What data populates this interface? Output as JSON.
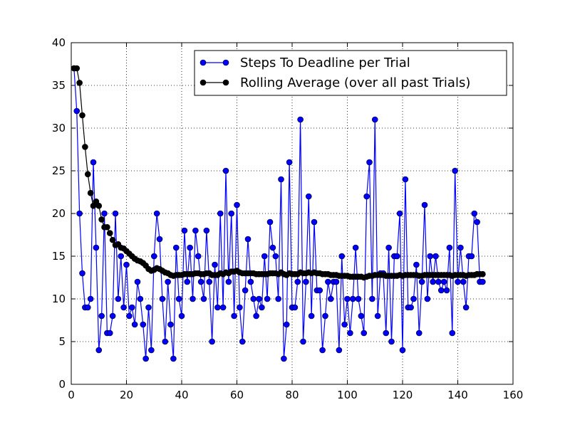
{
  "chart_data": {
    "type": "line",
    "title": "",
    "xlabel": "",
    "ylabel": "",
    "xlim": [
      0,
      160
    ],
    "ylim": [
      0,
      40
    ],
    "x_ticks": [
      0,
      20,
      40,
      60,
      80,
      100,
      120,
      140,
      160
    ],
    "y_ticks": [
      0,
      5,
      10,
      15,
      20,
      25,
      30,
      35,
      40
    ],
    "grid": true,
    "legend_position": "top-right",
    "series": [
      {
        "name": "Steps To Deadline per Trial",
        "color": "#0000ff",
        "marker": "circle",
        "x": [
          1,
          2,
          3,
          4,
          5,
          6,
          7,
          8,
          9,
          10,
          11,
          12,
          13,
          14,
          15,
          16,
          17,
          18,
          19,
          20,
          21,
          22,
          23,
          24,
          25,
          26,
          27,
          28,
          29,
          30,
          31,
          32,
          33,
          34,
          35,
          36,
          37,
          38,
          39,
          40,
          41,
          42,
          43,
          44,
          45,
          46,
          47,
          48,
          49,
          50,
          51,
          52,
          53,
          54,
          55,
          56,
          57,
          58,
          59,
          60,
          61,
          62,
          63,
          64,
          65,
          66,
          67,
          68,
          69,
          70,
          71,
          72,
          73,
          74,
          75,
          76,
          77,
          78,
          79,
          80,
          81,
          82,
          83,
          84,
          85,
          86,
          87,
          88,
          89,
          90,
          91,
          92,
          93,
          94,
          95,
          96,
          97,
          98,
          99,
          100,
          101,
          102,
          103,
          104,
          105,
          106,
          107,
          108,
          109,
          110,
          111,
          112,
          113,
          114,
          115,
          116,
          117,
          118,
          119,
          120,
          121,
          122,
          123,
          124,
          125,
          126,
          127,
          128,
          129,
          130,
          131,
          132,
          133,
          134,
          135,
          136,
          137,
          138,
          139,
          140,
          141,
          142,
          143,
          144,
          145,
          146,
          147,
          148,
          149
        ],
        "values": [
          37,
          32,
          20,
          13,
          9,
          9,
          10,
          26,
          16,
          4,
          8,
          20,
          6,
          6,
          8,
          20,
          10,
          15,
          9,
          14,
          8,
          9,
          7,
          12,
          10,
          7,
          3,
          9,
          4,
          15,
          20,
          17,
          10,
          5,
          12,
          7,
          3,
          16,
          10,
          8,
          18,
          12,
          16,
          10,
          18,
          15,
          12,
          10,
          18,
          12,
          5,
          14,
          9,
          20,
          9,
          25,
          12,
          20,
          8,
          21,
          9,
          5,
          11,
          17,
          12,
          10,
          8,
          10,
          9,
          15,
          10,
          19,
          16,
          15,
          10,
          24,
          3,
          7,
          26,
          9,
          9,
          12,
          31,
          5,
          12,
          22,
          8,
          19,
          11,
          11,
          4,
          8,
          12,
          10,
          12,
          12,
          4,
          15,
          7,
          10,
          6,
          10,
          16,
          10,
          8,
          6,
          22,
          26,
          10,
          31,
          8,
          13,
          13,
          6,
          16,
          5,
          15,
          15,
          20,
          4,
          24,
          9,
          9,
          10,
          14,
          6,
          12,
          21,
          10,
          15,
          12,
          15,
          12,
          11,
          12,
          11,
          16,
          6,
          25,
          12,
          16,
          12,
          9,
          15,
          15,
          20,
          19,
          12,
          12
        ]
      },
      {
        "name": "Rolling Average (over all past Trials)",
        "color": "#000000",
        "marker": "circle",
        "x": [
          1,
          2,
          3,
          4,
          5,
          6,
          7,
          8,
          9,
          10,
          11,
          12,
          13,
          14,
          15,
          16,
          17,
          18,
          19,
          20,
          21,
          22,
          23,
          24,
          25,
          26,
          27,
          28,
          29,
          30,
          31,
          32,
          33,
          34,
          35,
          36,
          37,
          38,
          39,
          40,
          41,
          42,
          43,
          44,
          45,
          46,
          47,
          48,
          49,
          50,
          51,
          52,
          53,
          54,
          55,
          56,
          57,
          58,
          59,
          60,
          61,
          62,
          63,
          64,
          65,
          66,
          67,
          68,
          69,
          70,
          71,
          72,
          73,
          74,
          75,
          76,
          77,
          78,
          79,
          80,
          81,
          82,
          83,
          84,
          85,
          86,
          87,
          88,
          89,
          90,
          91,
          92,
          93,
          94,
          95,
          96,
          97,
          98,
          99,
          100,
          101,
          102,
          103,
          104,
          105,
          106,
          107,
          108,
          109,
          110,
          111,
          112,
          113,
          114,
          115,
          116,
          117,
          118,
          119,
          120,
          121,
          122,
          123,
          124,
          125,
          126,
          127,
          128,
          129,
          130,
          131,
          132,
          133,
          134,
          135,
          136,
          137,
          138,
          139,
          140,
          141,
          142,
          143,
          144,
          145,
          146,
          147,
          148,
          149
        ],
        "values": [
          37.0,
          37.0,
          35.3,
          31.5,
          27.8,
          24.6,
          22.4,
          20.9,
          21.4,
          20.9,
          19.3,
          18.4,
          18.4,
          17.7,
          16.9,
          16.3,
          16.4,
          16.0,
          15.9,
          15.6,
          15.3,
          15.0,
          14.7,
          14.5,
          14.4,
          14.2,
          13.9,
          13.5,
          13.3,
          13.4,
          13.6,
          13.5,
          13.3,
          13.1,
          13.0,
          12.8,
          12.7,
          12.8,
          12.8,
          12.8,
          12.9,
          12.9,
          12.9,
          12.9,
          13.0,
          13.0,
          12.9,
          12.9,
          13.0,
          13.0,
          12.8,
          12.8,
          12.8,
          13.0,
          12.9,
          13.1,
          13.0,
          13.2,
          13.2,
          13.3,
          13.1,
          13.0,
          13.0,
          13.0,
          13.0,
          13.0,
          12.9,
          12.9,
          12.9,
          12.9,
          12.9,
          13.0,
          13.0,
          13.0,
          12.9,
          13.1,
          12.9,
          12.8,
          13.0,
          12.9,
          12.9,
          12.9,
          13.1,
          13.0,
          13.0,
          13.1,
          13.0,
          13.1,
          13.0,
          13.0,
          12.9,
          12.9,
          12.9,
          12.8,
          12.8,
          12.8,
          12.7,
          12.7,
          12.7,
          12.7,
          12.6,
          12.6,
          12.6,
          12.6,
          12.6,
          12.5,
          12.6,
          12.7,
          12.7,
          12.8,
          12.8,
          12.8,
          12.8,
          12.7,
          12.7,
          12.7,
          12.7,
          12.7,
          12.8,
          12.7,
          12.8,
          12.8,
          12.8,
          12.8,
          12.8,
          12.7,
          12.7,
          12.8,
          12.8,
          12.8,
          12.8,
          12.8,
          12.8,
          12.8,
          12.8,
          12.8,
          12.8,
          12.7,
          12.8,
          12.8,
          12.8,
          12.8,
          12.7,
          12.8,
          12.8,
          12.8,
          12.9,
          12.9,
          12.9
        ]
      }
    ]
  }
}
